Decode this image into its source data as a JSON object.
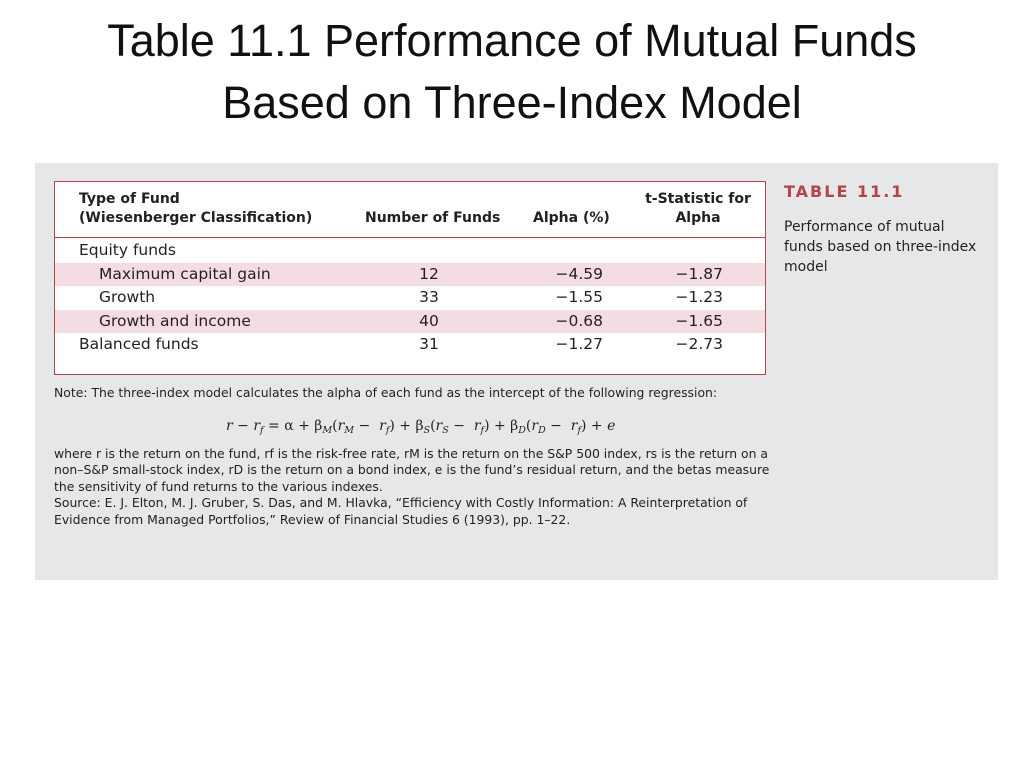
{
  "title": {
    "line1": "Table 11.1 Performance of Mutual Funds",
    "line2": "Based on Three-Index Model"
  },
  "table": {
    "headers": {
      "type_line1": "Type of Fund",
      "type_line2": "(Wiesenberger Classification)",
      "count": "Number of Funds",
      "alpha": "Alpha (%)",
      "tstat_line1": "t-Statistic for",
      "tstat_line2": "Alpha"
    },
    "rows": [
      {
        "type": "Equity funds",
        "count": "",
        "alpha": "",
        "tstat": "",
        "group": true,
        "shaded": false
      },
      {
        "type": "Maximum capital gain",
        "count": "12",
        "alpha": "−4.59",
        "tstat": "−1.87",
        "group": false,
        "shaded": true
      },
      {
        "type": "Growth",
        "count": "33",
        "alpha": "−1.55",
        "tstat": "−1.23",
        "group": false,
        "shaded": false
      },
      {
        "type": "Growth and income",
        "count": "40",
        "alpha": "−0.68",
        "tstat": "−1.65",
        "group": false,
        "shaded": true
      },
      {
        "type": "Balanced funds",
        "count": "31",
        "alpha": "−1.27",
        "tstat": "−2.73",
        "group": true,
        "shaded": false
      }
    ]
  },
  "sidebar": {
    "label": "TABLE 11.1",
    "caption": "Performance of mutual funds based on three-index model"
  },
  "notes": {
    "note_prefix": "Note: The three-index model calculates the alpha of each fund as the intercept of the following regression:",
    "equation": "r − rf = α + βM(rM − rf) + βS(rS − rf) + βD(rD − rf) + e",
    "where_text": "where r is the return on the fund, rf is the risk-free rate, rM is the return on the S&P 500 index, rs is the return on a non–S&P small-stock index, rD is the return on a bond index, e is the fund’s residual return, and the betas measure the sensitivity of fund returns to the various indexes.",
    "source_text": "Source: E. J. Elton, M. J. Gruber, S. Das, and M. Hlavka, “Efficiency with Costly Information: A Reinterpretation of Evidence from Managed Portfolios,” Review of Financial Studies 6 (1993), pp. 1–22."
  },
  "colors": {
    "accent": "#b5434a",
    "row_shade": "#f4dde2",
    "panel_bg": "#e6e7e8"
  }
}
